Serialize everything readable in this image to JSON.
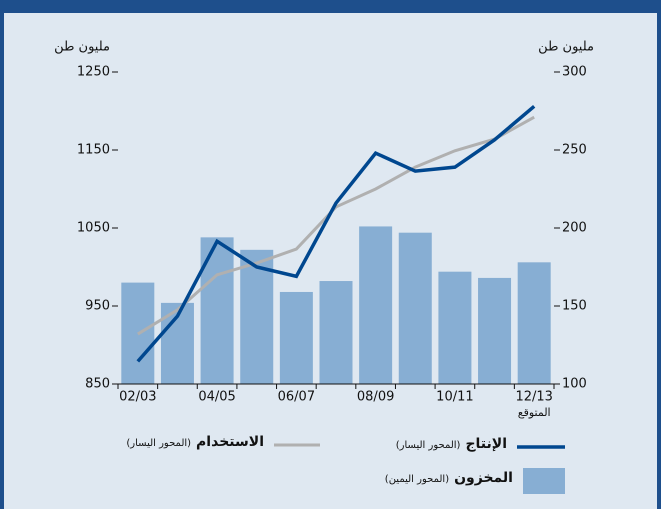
{
  "chart_data": {
    "type": "bar_line",
    "categories": [
      "02/03",
      null,
      "04/05",
      null,
      "06/07",
      null,
      "08/09",
      null,
      "10/11",
      null,
      "12/13"
    ],
    "annotation": "المتوقع",
    "y_axis_label": "مليون طن",
    "y2_axis_label": "مليون طن",
    "ylim": [
      850,
      1250
    ],
    "yticks": [
      850,
      950,
      1050,
      1150,
      1250
    ],
    "y2lim": [
      100,
      300
    ],
    "y2ticks": [
      100,
      150,
      200,
      250,
      300
    ],
    "series": [
      {
        "name": "الإنتاج",
        "legend_note": "(المحور اليسار)",
        "type": "line",
        "color": "#00478f",
        "values": [
          879,
          937,
          1033,
          1000,
          988,
          1082,
          1146,
          1123,
          1128,
          1163,
          1206
        ]
      },
      {
        "name": "الاستخدام",
        "legend_note": "(المحور اليسار)",
        "type": "line",
        "color": "#b0b0b0",
        "values": [
          914,
          945,
          990,
          1005,
          1023,
          1077,
          1100,
          1128,
          1149,
          1164,
          1192
        ]
      },
      {
        "name": "المخزون",
        "legend_note": "(المحور اليمين)",
        "type": "bar",
        "axis": "y2",
        "color": "#87aed3",
        "values": [
          165,
          152,
          194,
          186,
          159,
          166,
          201,
          197,
          172,
          168,
          178
        ]
      }
    ]
  }
}
